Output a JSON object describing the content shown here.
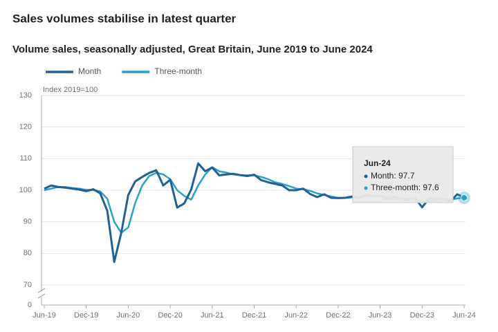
{
  "chart_data": {
    "type": "line",
    "title": "Sales volumes stabilise in latest quarter",
    "subtitle": "Volume sales, seasonally adjusted, Great Britain, June 2019 to June 2024",
    "y_label": "Index 2019=100",
    "categories": [
      "Jun-19",
      null,
      null,
      null,
      null,
      null,
      "Dec-19",
      null,
      null,
      null,
      null,
      null,
      "Jun-20",
      null,
      null,
      null,
      null,
      null,
      "Dec-20",
      null,
      null,
      null,
      null,
      null,
      "Jun-21",
      null,
      null,
      null,
      null,
      null,
      "Dec-21",
      null,
      null,
      null,
      null,
      null,
      "Jun-22",
      null,
      null,
      null,
      null,
      null,
      "Dec-22",
      null,
      null,
      null,
      null,
      null,
      "Jun-23",
      null,
      null,
      null,
      null,
      null,
      "Dec-23",
      null,
      null,
      null,
      null,
      null,
      "Jun-24"
    ],
    "series": [
      {
        "name": "Month",
        "color": "#206095",
        "values": [
          100.5,
          101.5,
          101,
          100.8,
          100.5,
          100.2,
          99.7,
          100.3,
          99,
          93.5,
          77.3,
          86.5,
          98.5,
          102.8,
          104.2,
          105.5,
          106.3,
          101.5,
          103.3,
          94.5,
          95.8,
          100.2,
          108.5,
          106,
          107.2,
          104.7,
          105,
          105.2,
          104.8,
          104.5,
          104.9,
          103.2,
          102.5,
          102,
          101.5,
          100,
          100,
          100.5,
          98.8,
          97.8,
          98.7,
          97.6,
          97.5,
          97.6,
          98,
          97.5,
          98.5,
          98.3,
          98.2,
          97.2,
          97.8,
          97.2,
          96.9,
          97.5,
          94.6,
          97.4,
          97.4,
          97.2,
          96.3,
          98.7,
          97.7
        ]
      },
      {
        "name": "Three-month",
        "color": "#27a0cc",
        "values": [
          100,
          100.5,
          101,
          101,
          100.7,
          100.5,
          100.1,
          100.1,
          99.6,
          97.3,
          90,
          86.5,
          88.2,
          96,
          101.5,
          104.5,
          105.5,
          105,
          103.5,
          100,
          98.2,
          97,
          101.5,
          105,
          107.3,
          106,
          105.6,
          105,
          104.8,
          104.7,
          104.7,
          104.2,
          103.5,
          102.5,
          102,
          101.3,
          100.5,
          100.3,
          99.8,
          99,
          98.5,
          98,
          97.6,
          97.6,
          97.7,
          97.7,
          98,
          98.1,
          98.3,
          98,
          97.8,
          97.4,
          97.3,
          97.2,
          96.3,
          96.5,
          96.4,
          97.4,
          97,
          97.4,
          97.6
        ]
      }
    ],
    "ylim": [
      70,
      130
    ],
    "yticks": [
      0,
      70,
      80,
      90,
      100,
      110,
      120,
      130
    ],
    "axis_break": true,
    "grid": true,
    "legend": "top-left",
    "tooltip": {
      "title": "Jun-24",
      "lines": [
        "Month: 97.7",
        "Three-month: 97.6"
      ]
    }
  }
}
